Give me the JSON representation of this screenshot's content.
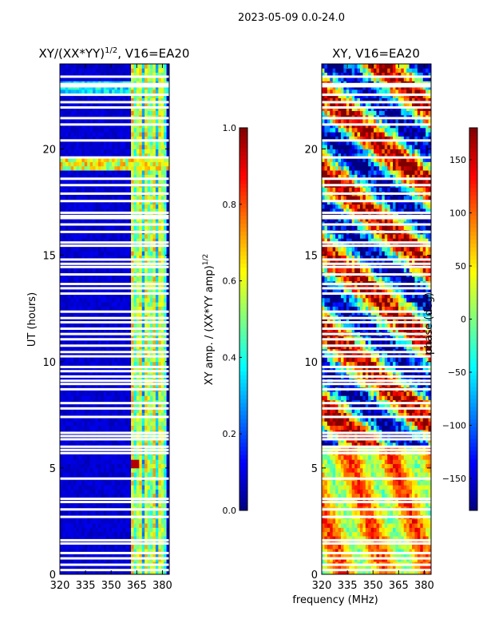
{
  "suptitle": "2023-05-09 0.0-24.0",
  "xlabel_shared": "frequency (MHz)",
  "colors": {
    "background": "#ffffff",
    "flagged": "#ffffff",
    "frame": "#000000"
  },
  "chart_data": [
    {
      "type": "heatmap",
      "title": "XY/(XX*YY)",
      "title_sup": "1/2",
      "title_suffix": ", V16=EA20",
      "xlabel": "",
      "ylabel": "UT (hours)",
      "xlim": [
        320,
        384
      ],
      "ylim": [
        0,
        24
      ],
      "xticks": [
        "320",
        "335",
        "350",
        "365",
        "380"
      ],
      "yticks": [
        "0",
        "5",
        "10",
        "15",
        "20"
      ],
      "xtick_values": [
        320,
        335,
        350,
        365,
        380
      ],
      "ytick_values": [
        0,
        5,
        10,
        15,
        20
      ],
      "colorbar": {
        "label": "XY amp. / (XX*YY amp)",
        "label_sup": "1/2",
        "range": [
          0.0,
          1.0
        ],
        "ticks": [
          "0.0",
          "0.2",
          "0.4",
          "0.6",
          "0.8",
          "1.0"
        ],
        "tick_values": [
          0.0,
          0.2,
          0.4,
          0.6,
          0.8,
          1.0
        ],
        "colormap": "jet"
      }
    },
    {
      "type": "heatmap",
      "title": "XY, V16=EA20",
      "xlabel": "frequency (MHz)",
      "ylabel": "",
      "xlim": [
        320,
        384
      ],
      "ylim": [
        0,
        24
      ],
      "xticks": [
        "320",
        "335",
        "350",
        "365",
        "380"
      ],
      "yticks": [
        "0",
        "5",
        "10",
        "15",
        "20"
      ],
      "xtick_values": [
        320,
        335,
        350,
        365,
        380
      ],
      "ytick_values": [
        0,
        5,
        10,
        15,
        20
      ],
      "colorbar": {
        "label": "phase (deg)",
        "range": [
          -180,
          180
        ],
        "ticks": [
          "−150",
          "−100",
          "−50",
          "0",
          "50",
          "100",
          "150"
        ],
        "tick_values": [
          -150,
          -100,
          -50,
          0,
          50,
          100,
          150
        ],
        "colormap": "jet"
      }
    }
  ],
  "flagged_hours": [
    0.2,
    0.45,
    0.75,
    1.0,
    1.45,
    1.6,
    2.7,
    3.05,
    3.4,
    3.55,
    4.5,
    5.7,
    5.85,
    6.0,
    6.35,
    6.5,
    6.65,
    7.4,
    7.8,
    8.05,
    8.7,
    8.95,
    9.1,
    9.3,
    9.55,
    9.75,
    10.25,
    10.45,
    10.75,
    11.05,
    11.3,
    11.55,
    11.85,
    12.05,
    12.35,
    13.2,
    13.45,
    13.65,
    14.1,
    14.45,
    14.6,
    14.8,
    15.45,
    15.6,
    16.1,
    16.45,
    16.75,
    16.85,
    17.0,
    17.55,
    17.9,
    18.3,
    18.6,
    19.6,
    20.4,
    21.15,
    21.45,
    21.95,
    22.2,
    22.55,
    22.95,
    23.05,
    23.4
  ]
}
